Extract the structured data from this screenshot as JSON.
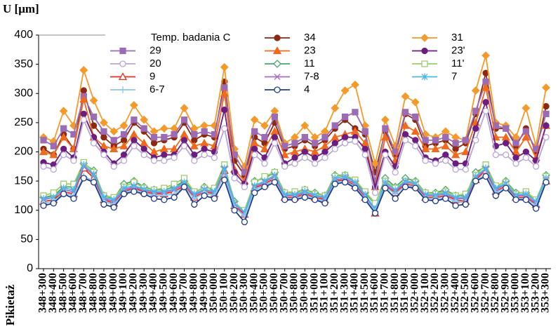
{
  "chart_data": {
    "type": "line",
    "y_label": "U [μm]",
    "x_label": "Pikietaż",
    "legend_title": "Temp. badania C",
    "categories": [
      "348+300",
      "348+400",
      "348+500",
      "348+600",
      "348+700",
      "348+800",
      "348+900",
      "349+000",
      "349+100",
      "349+200",
      "349+300",
      "349+400",
      "349+500",
      "349+600",
      "349+700",
      "349+800",
      "349+900",
      "350+000",
      "350+100",
      "350+200",
      "350+300",
      "350+400",
      "350+500",
      "350+600",
      "350+700",
      "350+800",
      "350+900",
      "351+000",
      "351+100",
      "351+200",
      "351+300",
      "351+400",
      "351+500",
      "351+600",
      "351+700",
      "351+800",
      "351+900",
      "352+000",
      "352+100",
      "352+200",
      "352+300",
      "352+400",
      "352+500",
      "352+600",
      "352+700",
      "352+800",
      "352+900",
      "353+000",
      "353+100",
      "353+200",
      "353+300"
    ],
    "ylim": [
      0,
      400
    ],
    "yticks": [
      0,
      50,
      100,
      150,
      200,
      250,
      300,
      350,
      400
    ],
    "grid": false,
    "series": [
      {
        "name": "34",
        "color": "#8b2a12",
        "marker": "circle",
        "values": [
          205,
          195,
          230,
          205,
          305,
          245,
          225,
          210,
          220,
          250,
          235,
          215,
          220,
          225,
          250,
          220,
          230,
          225,
          320,
          185,
          160,
          225,
          215,
          250,
          205,
          210,
          220,
          210,
          220,
          240,
          255,
          240,
          230,
          165,
          235,
          195,
          265,
          255,
          210,
          215,
          220,
          205,
          215,
          265,
          335,
          240,
          240,
          210,
          240,
          200,
          278
        ]
      },
      {
        "name": "31",
        "color": "#f39a2a",
        "marker": "diamond",
        "values": [
          225,
          218,
          270,
          245,
          340,
          288,
          250,
          235,
          245,
          280,
          255,
          235,
          240,
          240,
          275,
          240,
          245,
          245,
          345,
          205,
          175,
          255,
          245,
          270,
          215,
          225,
          245,
          225,
          235,
          275,
          305,
          315,
          245,
          180,
          255,
          210,
          295,
          285,
          230,
          225,
          235,
          225,
          220,
          305,
          365,
          250,
          245,
          225,
          275,
          210,
          310
        ]
      },
      {
        "name": "29",
        "color": "#9b6cb5",
        "marker": "square",
        "values": [
          220,
          210,
          240,
          230,
          295,
          260,
          235,
          220,
          230,
          255,
          240,
          225,
          225,
          230,
          255,
          230,
          235,
          230,
          310,
          195,
          165,
          235,
          225,
          260,
          210,
          215,
          225,
          215,
          225,
          245,
          260,
          268,
          235,
          150,
          240,
          200,
          268,
          260,
          220,
          220,
          225,
          215,
          220,
          270,
          320,
          245,
          240,
          215,
          235,
          205,
          265
        ]
      },
      {
        "name": "23",
        "color": "#f06a1e",
        "marker": "triangle",
        "values": [
          200,
          195,
          225,
          205,
          290,
          225,
          210,
          205,
          210,
          230,
          215,
          200,
          205,
          205,
          230,
          210,
          215,
          210,
          300,
          170,
          150,
          215,
          205,
          235,
          195,
          200,
          205,
          200,
          210,
          225,
          230,
          235,
          215,
          140,
          225,
          185,
          245,
          235,
          205,
          205,
          210,
          195,
          200,
          250,
          310,
          225,
          225,
          200,
          225,
          190,
          245
        ]
      },
      {
        "name": "23'",
        "color": "#6b1e7e",
        "marker": "circle",
        "values": [
          182,
          178,
          205,
          190,
          265,
          225,
          200,
          180,
          195,
          220,
          205,
          190,
          195,
          195,
          220,
          195,
          205,
          200,
          272,
          165,
          145,
          205,
          190,
          225,
          180,
          190,
          200,
          190,
          200,
          215,
          225,
          225,
          205,
          140,
          200,
          175,
          230,
          220,
          190,
          185,
          195,
          180,
          180,
          240,
          285,
          210,
          215,
          190,
          200,
          185,
          245
        ]
      },
      {
        "name": "20",
        "color": "#b9a6d8",
        "marker": "open-circle",
        "values": [
          175,
          170,
          195,
          185,
          255,
          215,
          195,
          175,
          185,
          210,
          195,
          185,
          185,
          190,
          210,
          185,
          195,
          190,
          240,
          155,
          140,
          195,
          180,
          215,
          175,
          180,
          190,
          180,
          190,
          205,
          215,
          218,
          195,
          130,
          195,
          165,
          220,
          210,
          185,
          180,
          185,
          170,
          170,
          220,
          270,
          195,
          195,
          180,
          190,
          175,
          225
        ]
      },
      {
        "name": "11",
        "color": "#4aa56a",
        "marker": "open-diamond",
        "values": [
          122,
          125,
          140,
          140,
          180,
          168,
          125,
          120,
          145,
          150,
          140,
          135,
          135,
          140,
          150,
          130,
          140,
          135,
          175,
          115,
          95,
          150,
          155,
          165,
          130,
          130,
          135,
          130,
          125,
          160,
          160,
          150,
          130,
          110,
          155,
          140,
          155,
          150,
          130,
          130,
          135,
          125,
          125,
          165,
          175,
          140,
          150,
          130,
          130,
          115,
          160
        ]
      },
      {
        "name": "11'",
        "color": "#9bcb6a",
        "marker": "open-square",
        "values": [
          125,
          130,
          145,
          145,
          182,
          165,
          125,
          122,
          140,
          148,
          138,
          135,
          138,
          145,
          155,
          132,
          138,
          138,
          178,
          112,
          100,
          148,
          158,
          165,
          130,
          132,
          135,
          128,
          125,
          158,
          160,
          152,
          132,
          112,
          150,
          138,
          150,
          148,
          130,
          128,
          132,
          125,
          128,
          160,
          178,
          142,
          148,
          128,
          132,
          118,
          158
        ]
      },
      {
        "name": "9",
        "color": "#e8321e",
        "marker": "open-triangle",
        "values": [
          115,
          118,
          132,
          128,
          172,
          155,
          118,
          112,
          132,
          138,
          132,
          128,
          128,
          132,
          142,
          122,
          132,
          128,
          168,
          108,
          93,
          138,
          145,
          155,
          122,
          122,
          128,
          122,
          118,
          150,
          152,
          142,
          122,
          95,
          142,
          130,
          145,
          142,
          122,
          122,
          125,
          118,
          115,
          152,
          168,
          132,
          142,
          122,
          122,
          110,
          150
        ]
      },
      {
        "name": "7-8",
        "color": "#a96cc0",
        "marker": "x",
        "values": [
          118,
          122,
          135,
          132,
          175,
          160,
          120,
          115,
          135,
          140,
          135,
          130,
          130,
          135,
          145,
          125,
          135,
          130,
          170,
          110,
          95,
          140,
          148,
          158,
          125,
          125,
          130,
          125,
          120,
          152,
          155,
          145,
          125,
          100,
          145,
          132,
          148,
          145,
          125,
          125,
          128,
          120,
          120,
          155,
          170,
          135,
          145,
          125,
          125,
          112,
          152
        ]
      },
      {
        "name": "7",
        "color": "#4cb8e8",
        "marker": "star",
        "values": [
          120,
          122,
          138,
          135,
          178,
          162,
          122,
          118,
          138,
          142,
          136,
          132,
          132,
          137,
          148,
          128,
          136,
          132,
          172,
          112,
          97,
          142,
          150,
          160,
          127,
          127,
          132,
          126,
          122,
          155,
          158,
          148,
          127,
          102,
          148,
          135,
          150,
          146,
          127,
          126,
          130,
          122,
          122,
          158,
          172,
          138,
          146,
          126,
          128,
          115,
          155
        ]
      },
      {
        "name": "6-7",
        "color": "#8cc4ec",
        "marker": "plus",
        "values": [
          112,
          115,
          130,
          125,
          158,
          150,
          115,
          110,
          130,
          135,
          130,
          125,
          125,
          128,
          140,
          120,
          130,
          125,
          160,
          105,
          90,
          135,
          142,
          152,
          120,
          120,
          125,
          120,
          115,
          148,
          150,
          140,
          120,
          98,
          140,
          128,
          142,
          140,
          120,
          120,
          122,
          115,
          113,
          150,
          162,
          130,
          140,
          120,
          120,
          108,
          150
        ]
      },
      {
        "name": "4",
        "color": "#1f3c8c",
        "marker": "open-circle",
        "values": [
          108,
          112,
          128,
          120,
          155,
          148,
          110,
          105,
          128,
          132,
          128,
          120,
          118,
          122,
          140,
          110,
          125,
          120,
          152,
          100,
          80,
          130,
          140,
          148,
          118,
          118,
          122,
          118,
          112,
          145,
          148,
          138,
          118,
          95,
          138,
          120,
          140,
          138,
          118,
          116,
          120,
          108,
          110,
          150,
          158,
          125,
          138,
          118,
          118,
          103,
          148
        ]
      }
    ]
  }
}
